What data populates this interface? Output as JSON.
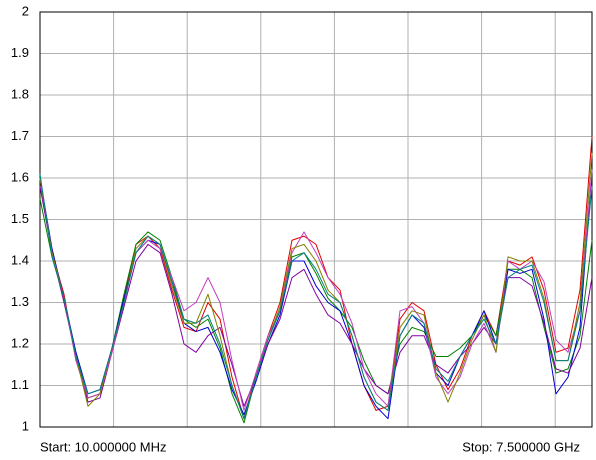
{
  "chart_data": {
    "type": "line",
    "ylim": [
      1,
      2
    ],
    "yticks": [
      1,
      1.1,
      1.2,
      1.3,
      1.4,
      1.5,
      1.6,
      1.7,
      1.8,
      1.9,
      2
    ],
    "grid": true,
    "annotations": [
      "Start: 10.000000 MHz",
      "Stop: 7.500000 GHz"
    ],
    "series": [
      {
        "color": "#e00000",
        "values": [
          1.6,
          1.42,
          1.32,
          1.16,
          1.07,
          1.08,
          1.19,
          1.31,
          1.44,
          1.46,
          1.43,
          1.33,
          1.24,
          1.23,
          1.3,
          1.26,
          1.12,
          1.02,
          1.13,
          1.22,
          1.3,
          1.45,
          1.46,
          1.44,
          1.36,
          1.33,
          1.2,
          1.1,
          1.04,
          1.05,
          1.26,
          1.3,
          1.28,
          1.15,
          1.09,
          1.14,
          1.22,
          1.28,
          1.22,
          1.4,
          1.39,
          1.41,
          1.33,
          1.18,
          1.19,
          1.33,
          1.7
        ]
      },
      {
        "color": "#008000",
        "values": [
          1.55,
          1.41,
          1.31,
          1.17,
          1.07,
          1.08,
          1.19,
          1.32,
          1.44,
          1.47,
          1.45,
          1.36,
          1.26,
          1.24,
          1.26,
          1.19,
          1.08,
          1.01,
          1.12,
          1.21,
          1.28,
          1.41,
          1.42,
          1.37,
          1.31,
          1.28,
          1.24,
          1.16,
          1.1,
          1.08,
          1.2,
          1.24,
          1.23,
          1.17,
          1.17,
          1.19,
          1.22,
          1.27,
          1.22,
          1.38,
          1.38,
          1.36,
          1.24,
          1.13,
          1.14,
          1.22,
          1.45
        ]
      },
      {
        "color": "#0000d0",
        "values": [
          1.6,
          1.43,
          1.31,
          1.18,
          1.08,
          1.09,
          1.19,
          1.31,
          1.42,
          1.45,
          1.44,
          1.35,
          1.25,
          1.23,
          1.24,
          1.18,
          1.09,
          1.03,
          1.11,
          1.2,
          1.27,
          1.4,
          1.4,
          1.34,
          1.3,
          1.28,
          1.2,
          1.1,
          1.05,
          1.02,
          1.22,
          1.27,
          1.24,
          1.13,
          1.1,
          1.17,
          1.22,
          1.28,
          1.2,
          1.38,
          1.37,
          1.38,
          1.26,
          1.08,
          1.12,
          1.24,
          1.62
        ]
      },
      {
        "color": "#8000a0",
        "values": [
          1.58,
          1.42,
          1.3,
          1.17,
          1.06,
          1.07,
          1.18,
          1.29,
          1.4,
          1.44,
          1.42,
          1.32,
          1.2,
          1.18,
          1.22,
          1.24,
          1.15,
          1.05,
          1.12,
          1.2,
          1.26,
          1.36,
          1.38,
          1.32,
          1.27,
          1.25,
          1.2,
          1.14,
          1.1,
          1.08,
          1.18,
          1.22,
          1.22,
          1.15,
          1.13,
          1.17,
          1.2,
          1.24,
          1.2,
          1.36,
          1.36,
          1.34,
          1.25,
          1.14,
          1.13,
          1.19,
          1.36
        ]
      },
      {
        "color": "#c040c0",
        "values": [
          1.6,
          1.42,
          1.31,
          1.16,
          1.07,
          1.08,
          1.18,
          1.3,
          1.42,
          1.45,
          1.43,
          1.36,
          1.28,
          1.3,
          1.36,
          1.3,
          1.16,
          1.04,
          1.13,
          1.22,
          1.28,
          1.42,
          1.47,
          1.42,
          1.36,
          1.32,
          1.25,
          1.14,
          1.08,
          1.05,
          1.28,
          1.29,
          1.25,
          1.12,
          1.08,
          1.12,
          1.2,
          1.25,
          1.18,
          1.4,
          1.38,
          1.4,
          1.35,
          1.21,
          1.18,
          1.28,
          1.62
        ]
      },
      {
        "color": "#808000",
        "values": [
          1.6,
          1.42,
          1.31,
          1.17,
          1.05,
          1.08,
          1.19,
          1.3,
          1.43,
          1.46,
          1.44,
          1.34,
          1.25,
          1.25,
          1.32,
          1.22,
          1.1,
          1.02,
          1.12,
          1.21,
          1.29,
          1.43,
          1.44,
          1.4,
          1.33,
          1.3,
          1.22,
          1.12,
          1.06,
          1.04,
          1.24,
          1.28,
          1.27,
          1.13,
          1.06,
          1.13,
          1.21,
          1.27,
          1.18,
          1.41,
          1.4,
          1.4,
          1.31,
          1.16,
          1.16,
          1.3,
          1.66
        ]
      },
      {
        "color": "#008080",
        "values": [
          1.61,
          1.41,
          1.31,
          1.17,
          1.08,
          1.09,
          1.19,
          1.3,
          1.42,
          1.46,
          1.44,
          1.35,
          1.26,
          1.25,
          1.27,
          1.2,
          1.1,
          1.02,
          1.12,
          1.21,
          1.28,
          1.4,
          1.42,
          1.38,
          1.32,
          1.3,
          1.22,
          1.12,
          1.06,
          1.04,
          1.22,
          1.27,
          1.25,
          1.14,
          1.11,
          1.17,
          1.22,
          1.26,
          1.2,
          1.36,
          1.38,
          1.39,
          1.3,
          1.16,
          1.16,
          1.28,
          1.58
        ]
      }
    ]
  }
}
